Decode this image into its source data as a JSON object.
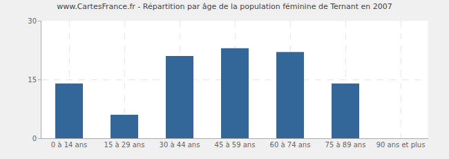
{
  "chart_data": {
    "type": "bar",
    "title": "www.CartesFrance.fr - Répartition par âge de la population féminine de Ternant en 2007",
    "categories": [
      "0 à 14 ans",
      "15 à 29 ans",
      "30 à 44 ans",
      "45 à 59 ans",
      "60 à 74 ans",
      "75 à 89 ans",
      "90 ans et plus"
    ],
    "values": [
      14,
      6,
      21,
      23,
      22,
      14,
      0
    ],
    "color": "#336699",
    "ylim": [
      0,
      30
    ],
    "yticks": [
      0,
      15,
      30
    ],
    "grid": true
  }
}
